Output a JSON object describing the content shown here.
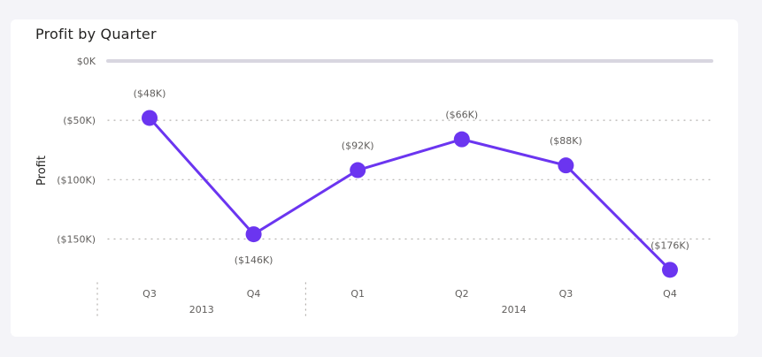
{
  "chart_data": {
    "type": "line",
    "title": "Profit by Quarter",
    "ylabel": "Profit",
    "xlabel": "",
    "ylim": [
      -180,
      0
    ],
    "y_ticks": [
      {
        "value": 0,
        "label": "$0K"
      },
      {
        "value": -50,
        "label": "($50K)"
      },
      {
        "value": -100,
        "label": "($100K)"
      },
      {
        "value": -150,
        "label": "($150K)"
      }
    ],
    "categories": [
      "Q3",
      "Q4",
      "Q1",
      "Q2",
      "Q3",
      "Q4"
    ],
    "groups": [
      {
        "label": "2013",
        "start": 0,
        "end": 1
      },
      {
        "label": "2014",
        "start": 2,
        "end": 5
      }
    ],
    "series": [
      {
        "values": [
          -48,
          -146,
          -92,
          -66,
          -88,
          -176
        ],
        "labels": [
          "($48K)",
          "($146K)",
          "($92K)",
          "($66K)",
          "($88K)",
          "($176K)"
        ],
        "label_positions": [
          "above",
          "below",
          "above",
          "above",
          "above",
          "above"
        ],
        "color": "#6b35f0"
      }
    ],
    "grid": true
  }
}
